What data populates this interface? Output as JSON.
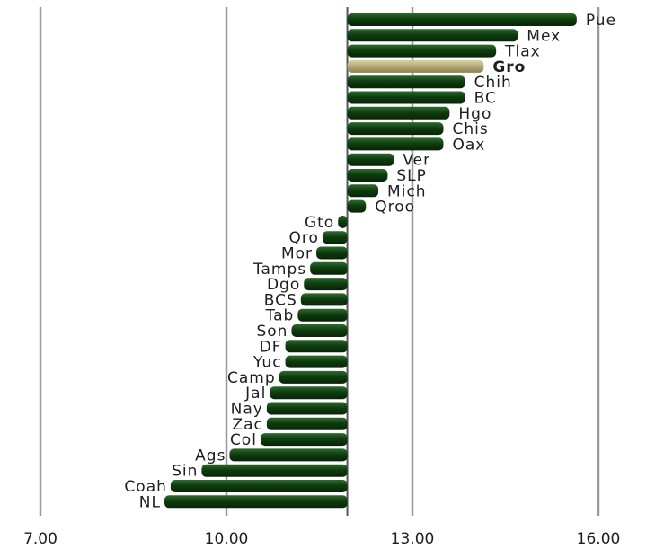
{
  "chart_data": {
    "type": "bar",
    "orientation": "horizontal",
    "baseline": 11.95,
    "xlim": [
      7.0,
      17.0
    ],
    "xticks": [
      "7.00",
      "10.00",
      "13.00",
      "16.00"
    ],
    "xtick_values": [
      7,
      10,
      13,
      16
    ],
    "grid": true,
    "highlight": "Gro",
    "colors": {
      "bar": "#0f3d0f",
      "highlight": "#b5ab78",
      "grid": "#9a9a9a",
      "baseline": "#555555"
    },
    "categories": [
      "Pue",
      "Mex",
      "Tlax",
      "Gro",
      "Chih",
      "BC",
      "Hgo",
      "Chis",
      "Oax",
      "Ver",
      "SLP",
      "Mich",
      "Qroo",
      "Gto",
      "Qro",
      "Mor",
      "Tamps",
      "Dgo",
      "BCS",
      "Tab",
      "Son",
      "DF",
      "Yuc",
      "Camp",
      "Jal",
      "Nay",
      "Zac",
      "Col",
      "Ags",
      "Sin",
      "Coah",
      "NL"
    ],
    "values": [
      15.65,
      14.7,
      14.35,
      14.15,
      13.85,
      13.85,
      13.6,
      13.5,
      13.5,
      12.7,
      12.6,
      12.45,
      12.25,
      11.8,
      11.55,
      11.45,
      11.35,
      11.25,
      11.2,
      11.15,
      11.05,
      10.95,
      10.95,
      10.85,
      10.7,
      10.65,
      10.65,
      10.55,
      10.05,
      9.6,
      9.1,
      9.0
    ]
  }
}
